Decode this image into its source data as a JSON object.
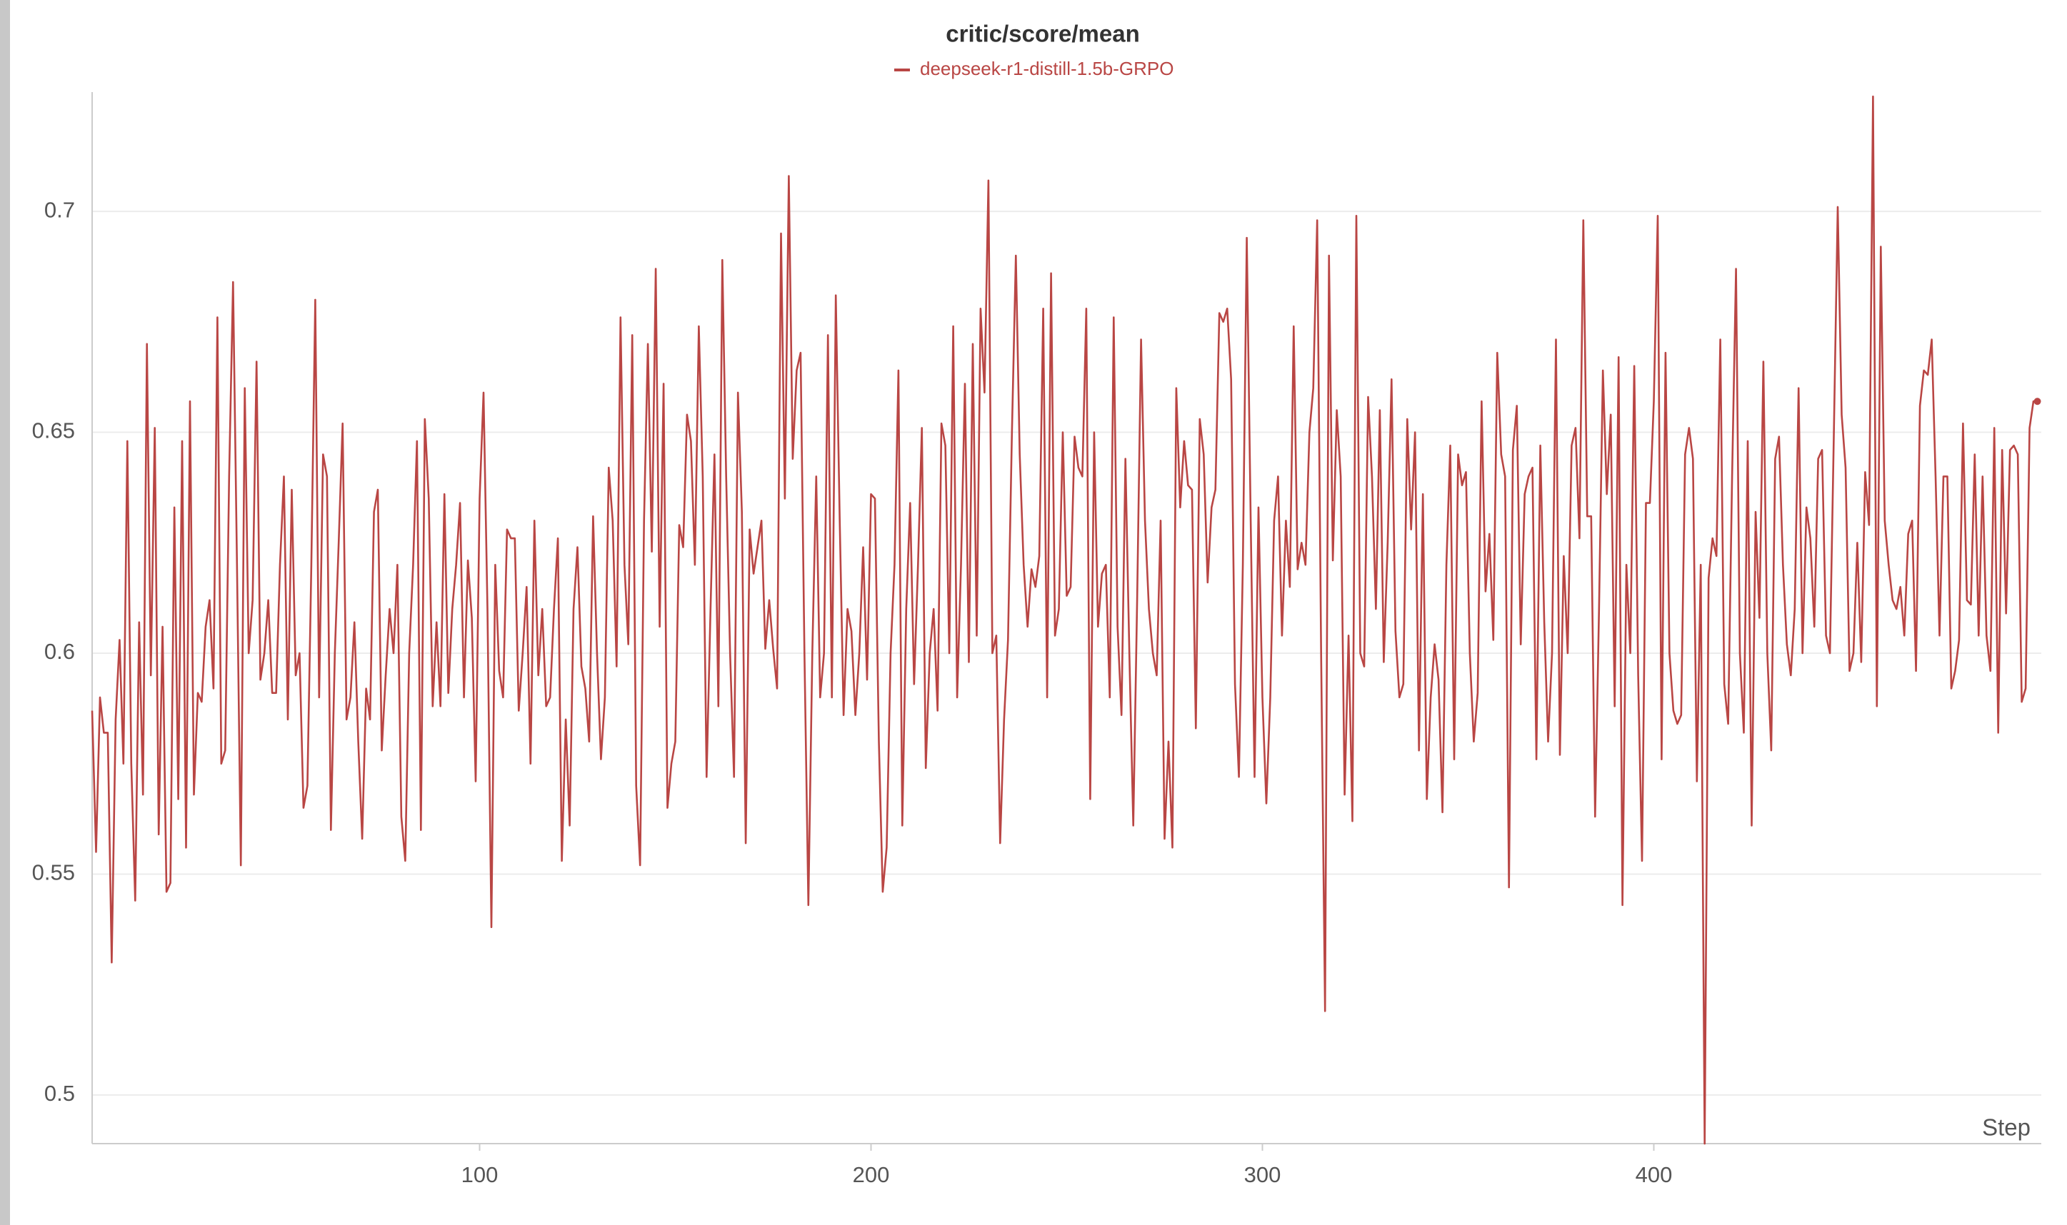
{
  "chart_data": {
    "type": "line",
    "title": "critic/score/mean",
    "x_label": "Step",
    "xlim": [
      1,
      499
    ],
    "xticks": [
      100,
      200,
      300,
      400
    ],
    "ylim": [
      0.489,
      0.727
    ],
    "yticks": [
      0.5,
      0.55,
      0.6,
      0.65,
      0.7
    ],
    "grid": true,
    "x": [
      1,
      2,
      3,
      4,
      5,
      6,
      7,
      8,
      9,
      10,
      11,
      12,
      13,
      14,
      15,
      16,
      17,
      18,
      19,
      20,
      21,
      22,
      23,
      24,
      25,
      26,
      27,
      28,
      29,
      30,
      31,
      32,
      33,
      34,
      35,
      36,
      37,
      38,
      39,
      40,
      41,
      42,
      43,
      44,
      45,
      46,
      47,
      48,
      49,
      50,
      51,
      52,
      53,
      54,
      55,
      56,
      57,
      58,
      59,
      60,
      61,
      62,
      63,
      64,
      65,
      66,
      67,
      68,
      69,
      70,
      71,
      72,
      73,
      74,
      75,
      76,
      77,
      78,
      79,
      80,
      81,
      82,
      83,
      84,
      85,
      86,
      87,
      88,
      89,
      90,
      91,
      92,
      93,
      94,
      95,
      96,
      97,
      98,
      99,
      100,
      101,
      102,
      103,
      104,
      105,
      106,
      107,
      108,
      109,
      110,
      111,
      112,
      113,
      114,
      115,
      116,
      117,
      118,
      119,
      120,
      121,
      122,
      123,
      124,
      125,
      126,
      127,
      128,
      129,
      130,
      131,
      132,
      133,
      134,
      135,
      136,
      137,
      138,
      139,
      140,
      141,
      142,
      143,
      144,
      145,
      146,
      147,
      148,
      149,
      150,
      151,
      152,
      153,
      154,
      155,
      156,
      157,
      158,
      159,
      160,
      161,
      162,
      163,
      164,
      165,
      166,
      167,
      168,
      169,
      170,
      171,
      172,
      173,
      174,
      175,
      176,
      177,
      178,
      179,
      180,
      181,
      182,
      183,
      184,
      185,
      186,
      187,
      188,
      189,
      190,
      191,
      192,
      193,
      194,
      195,
      196,
      197,
      198,
      199,
      200,
      201,
      202,
      203,
      204,
      205,
      206,
      207,
      208,
      209,
      210,
      211,
      212,
      213,
      214,
      215,
      216,
      217,
      218,
      219,
      220,
      221,
      222,
      223,
      224,
      225,
      226,
      227,
      228,
      229,
      230,
      231,
      232,
      233,
      234,
      235,
      236,
      237,
      238,
      239,
      240,
      241,
      242,
      243,
      244,
      245,
      246,
      247,
      248,
      249,
      250,
      251,
      252,
      253,
      254,
      255,
      256,
      257,
      258,
      259,
      260,
      261,
      262,
      263,
      264,
      265,
      266,
      267,
      268,
      269,
      270,
      271,
      272,
      273,
      274,
      275,
      276,
      277,
      278,
      279,
      280,
      281,
      282,
      283,
      284,
      285,
      286,
      287,
      288,
      289,
      290,
      291,
      292,
      293,
      294,
      295,
      296,
      297,
      298,
      299,
      300,
      301,
      302,
      303,
      304,
      305,
      306,
      307,
      308,
      309,
      310,
      311,
      312,
      313,
      314,
      315,
      316,
      317,
      318,
      319,
      320,
      321,
      322,
      323,
      324,
      325,
      326,
      327,
      328,
      329,
      330,
      331,
      332,
      333,
      334,
      335,
      336,
      337,
      338,
      339,
      340,
      341,
      342,
      343,
      344,
      345,
      346,
      347,
      348,
      349,
      350,
      351,
      352,
      353,
      354,
      355,
      356,
      357,
      358,
      359,
      360,
      361,
      362,
      363,
      364,
      365,
      366,
      367,
      368,
      369,
      370,
      371,
      372,
      373,
      374,
      375,
      376,
      377,
      378,
      379,
      380,
      381,
      382,
      383,
      384,
      385,
      386,
      387,
      388,
      389,
      390,
      391,
      392,
      393,
      394,
      395,
      396,
      397,
      398,
      399,
      400,
      401,
      402,
      403,
      404,
      405,
      406,
      407,
      408,
      409,
      410,
      411,
      412,
      413,
      414,
      415,
      416,
      417,
      418,
      419,
      420,
      421,
      422,
      423,
      424,
      425,
      426,
      427,
      428,
      429,
      430,
      431,
      432,
      433,
      434,
      435,
      436,
      437,
      438,
      439,
      440,
      441,
      442,
      443,
      444,
      445,
      446,
      447,
      448,
      449,
      450,
      451,
      452,
      453,
      454,
      455,
      456,
      457,
      458,
      459,
      460,
      461,
      462,
      463,
      464,
      465,
      466,
      467,
      468,
      469,
      470,
      471,
      472,
      473,
      474,
      475,
      476,
      477,
      478,
      479,
      480,
      481,
      482,
      483,
      484,
      485,
      486,
      487,
      488,
      489,
      490,
      491,
      492,
      493,
      494,
      495,
      496,
      497,
      498
    ],
    "series": [
      {
        "name": "deepseek-r1-distill-1.5b-GRPO",
        "color": "#b94644",
        "values": [
          0.587,
          0.555,
          0.59,
          0.582,
          0.582,
          0.53,
          0.585,
          0.603,
          0.575,
          0.648,
          0.575,
          0.544,
          0.607,
          0.568,
          0.67,
          0.595,
          0.651,
          0.559,
          0.606,
          0.546,
          0.548,
          0.633,
          0.567,
          0.648,
          0.556,
          0.657,
          0.568,
          0.591,
          0.589,
          0.606,
          0.612,
          0.592,
          0.676,
          0.575,
          0.578,
          0.64,
          0.684,
          0.62,
          0.552,
          0.66,
          0.6,
          0.612,
          0.666,
          0.594,
          0.6,
          0.612,
          0.591,
          0.591,
          0.62,
          0.64,
          0.585,
          0.637,
          0.595,
          0.6,
          0.565,
          0.57,
          0.62,
          0.68,
          0.59,
          0.645,
          0.64,
          0.56,
          0.6,
          0.625,
          0.652,
          0.585,
          0.59,
          0.607,
          0.58,
          0.558,
          0.592,
          0.585,
          0.632,
          0.637,
          0.578,
          0.595,
          0.61,
          0.6,
          0.62,
          0.563,
          0.553,
          0.6,
          0.62,
          0.648,
          0.56,
          0.653,
          0.635,
          0.588,
          0.607,
          0.588,
          0.636,
          0.591,
          0.61,
          0.62,
          0.634,
          0.59,
          0.621,
          0.608,
          0.571,
          0.635,
          0.659,
          0.61,
          0.538,
          0.62,
          0.596,
          0.59,
          0.628,
          0.626,
          0.626,
          0.587,
          0.6,
          0.615,
          0.575,
          0.63,
          0.595,
          0.61,
          0.588,
          0.59,
          0.61,
          0.626,
          0.553,
          0.585,
          0.561,
          0.61,
          0.624,
          0.597,
          0.592,
          0.58,
          0.631,
          0.6,
          0.576,
          0.59,
          0.642,
          0.63,
          0.597,
          0.676,
          0.62,
          0.602,
          0.672,
          0.57,
          0.552,
          0.63,
          0.67,
          0.623,
          0.687,
          0.606,
          0.661,
          0.565,
          0.575,
          0.58,
          0.629,
          0.624,
          0.654,
          0.648,
          0.62,
          0.674,
          0.64,
          0.572,
          0.61,
          0.645,
          0.588,
          0.689,
          0.64,
          0.6,
          0.572,
          0.659,
          0.632,
          0.557,
          0.628,
          0.618,
          0.624,
          0.63,
          0.601,
          0.612,
          0.601,
          0.592,
          0.695,
          0.635,
          0.708,
          0.644,
          0.664,
          0.668,
          0.6,
          0.543,
          0.6,
          0.64,
          0.59,
          0.6,
          0.672,
          0.59,
          0.681,
          0.63,
          0.586,
          0.61,
          0.605,
          0.586,
          0.6,
          0.624,
          0.594,
          0.636,
          0.635,
          0.58,
          0.546,
          0.556,
          0.6,
          0.62,
          0.664,
          0.561,
          0.61,
          0.634,
          0.593,
          0.62,
          0.651,
          0.574,
          0.6,
          0.61,
          0.587,
          0.652,
          0.647,
          0.6,
          0.674,
          0.59,
          0.62,
          0.661,
          0.598,
          0.67,
          0.604,
          0.678,
          0.659,
          0.707,
          0.6,
          0.604,
          0.557,
          0.585,
          0.603,
          0.65,
          0.69,
          0.645,
          0.62,
          0.606,
          0.619,
          0.615,
          0.622,
          0.678,
          0.59,
          0.686,
          0.604,
          0.61,
          0.65,
          0.613,
          0.615,
          0.649,
          0.642,
          0.64,
          0.678,
          0.567,
          0.65,
          0.606,
          0.618,
          0.62,
          0.59,
          0.676,
          0.606,
          0.586,
          0.644,
          0.6,
          0.561,
          0.612,
          0.671,
          0.63,
          0.61,
          0.6,
          0.595,
          0.63,
          0.558,
          0.58,
          0.556,
          0.66,
          0.633,
          0.648,
          0.638,
          0.637,
          0.583,
          0.653,
          0.645,
          0.616,
          0.633,
          0.637,
          0.677,
          0.675,
          0.678,
          0.662,
          0.593,
          0.572,
          0.62,
          0.694,
          0.63,
          0.572,
          0.633,
          0.59,
          0.566,
          0.59,
          0.63,
          0.64,
          0.604,
          0.63,
          0.615,
          0.674,
          0.619,
          0.625,
          0.62,
          0.65,
          0.66,
          0.698,
          0.6,
          0.519,
          0.69,
          0.621,
          0.655,
          0.64,
          0.568,
          0.604,
          0.562,
          0.699,
          0.6,
          0.597,
          0.658,
          0.64,
          0.61,
          0.655,
          0.598,
          0.625,
          0.662,
          0.605,
          0.59,
          0.593,
          0.653,
          0.628,
          0.65,
          0.578,
          0.636,
          0.567,
          0.59,
          0.602,
          0.594,
          0.564,
          0.62,
          0.647,
          0.576,
          0.645,
          0.638,
          0.641,
          0.6,
          0.58,
          0.591,
          0.657,
          0.614,
          0.627,
          0.603,
          0.668,
          0.645,
          0.64,
          0.547,
          0.646,
          0.656,
          0.602,
          0.636,
          0.64,
          0.642,
          0.576,
          0.647,
          0.607,
          0.58,
          0.6,
          0.671,
          0.577,
          0.622,
          0.6,
          0.647,
          0.651,
          0.626,
          0.698,
          0.631,
          0.631,
          0.563,
          0.61,
          0.664,
          0.636,
          0.654,
          0.588,
          0.667,
          0.543,
          0.62,
          0.6,
          0.665,
          0.595,
          0.553,
          0.634,
          0.634,
          0.657,
          0.699,
          0.576,
          0.668,
          0.6,
          0.587,
          0.584,
          0.586,
          0.645,
          0.651,
          0.644,
          0.571,
          0.62,
          0.489,
          0.617,
          0.626,
          0.622,
          0.671,
          0.593,
          0.584,
          0.64,
          0.687,
          0.6,
          0.582,
          0.648,
          0.561,
          0.632,
          0.608,
          0.666,
          0.6,
          0.578,
          0.644,
          0.649,
          0.62,
          0.602,
          0.595,
          0.61,
          0.66,
          0.6,
          0.633,
          0.626,
          0.606,
          0.644,
          0.646,
          0.604,
          0.6,
          0.65,
          0.701,
          0.654,
          0.642,
          0.596,
          0.6,
          0.625,
          0.598,
          0.641,
          0.629,
          0.726,
          0.588,
          0.692,
          0.63,
          0.62,
          0.612,
          0.61,
          0.615,
          0.604,
          0.627,
          0.63,
          0.596,
          0.656,
          0.664,
          0.663,
          0.671,
          0.64,
          0.604,
          0.64,
          0.64,
          0.592,
          0.596,
          0.603,
          0.652,
          0.612,
          0.611,
          0.645,
          0.604,
          0.64,
          0.604,
          0.596,
          0.651,
          0.582,
          0.646,
          0.609,
          0.646,
          0.647,
          0.645,
          0.589,
          0.592,
          0.651,
          0.657,
          0.657
        ]
      }
    ]
  }
}
